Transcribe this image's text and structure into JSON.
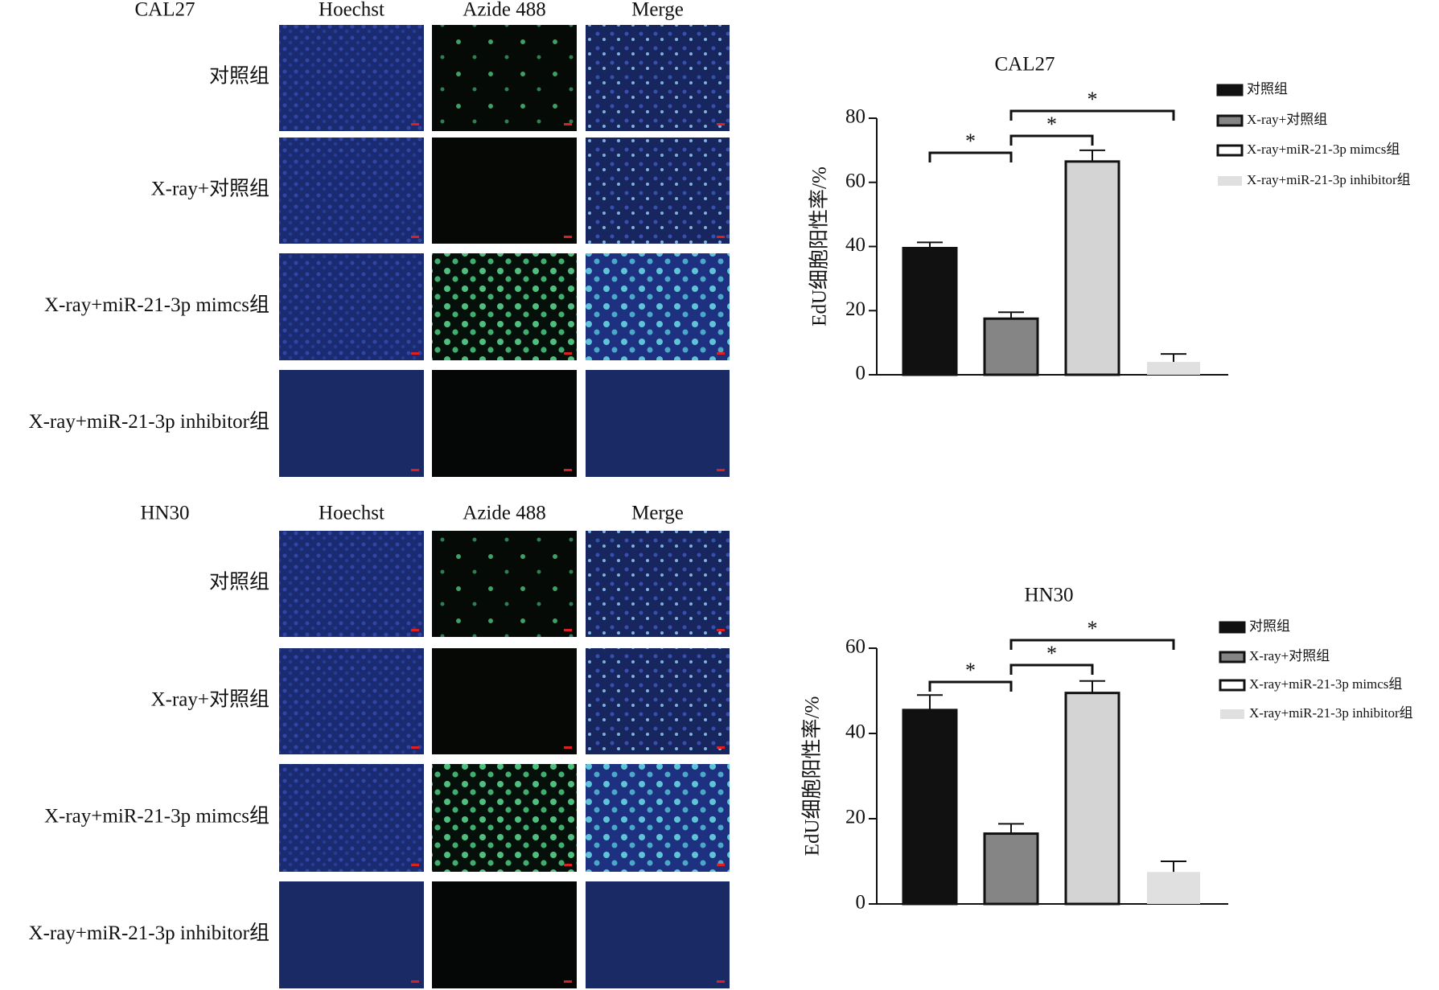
{
  "panels": [
    {
      "title": "CAL27",
      "columns": [
        "Hoechst",
        "Azide 488",
        "Merge"
      ],
      "rows": [
        "对照组",
        "X-ray+对照组",
        "X-ray+miR-21-3p mimcs组",
        "X-ray+miR-21-3p inhibitor组"
      ]
    },
    {
      "title": "HN30",
      "columns": [
        "Hoechst",
        "Azide 488",
        "Merge"
      ],
      "rows": [
        "对照组",
        "X-ray+对照组",
        "X-ray+miR-21-3p mimcs组",
        "X-ray+miR-21-3p inhibitor组"
      ]
    }
  ],
  "chart_data": [
    {
      "type": "bar",
      "title": "CAL27",
      "y_label": "EdU细胞阳性率/%",
      "categories": [
        "对照组",
        "X-ray+对照组",
        "X-ray+miR-21-3p mimcs组",
        "X-ray+miR-21-3p inhibitor组"
      ],
      "values": [
        39.5,
        17.5,
        66.5,
        4
      ],
      "errors": [
        1.8,
        2,
        3.5,
        2.5
      ],
      "colors": [
        "#111111",
        "#858585",
        "#d4d4d4",
        "#e0e0e0"
      ],
      "ylim": [
        0,
        80
      ],
      "yticks": [
        0,
        20,
        40,
        60,
        80
      ],
      "comparisons": [
        {
          "pair": [
            0,
            1
          ],
          "label": "*"
        },
        {
          "pair": [
            1,
            2
          ],
          "label": "*"
        },
        {
          "pair": [
            1,
            3
          ],
          "label": "*"
        }
      ]
    },
    {
      "type": "bar",
      "title": "HN30",
      "y_label": "EdU细胞阳性率/%",
      "categories": [
        "对照组",
        "X-ray+对照组",
        "X-ray+miR-21-3p mimcs组",
        "X-ray+miR-21-3p inhibitor组"
      ],
      "values": [
        45.5,
        16.5,
        49.5,
        7.5
      ],
      "errors": [
        3.5,
        2.3,
        2.8,
        2.5
      ],
      "colors": [
        "#111111",
        "#858585",
        "#d4d4d4",
        "#e0e0e0"
      ],
      "ylim": [
        0,
        60
      ],
      "yticks": [
        0,
        20,
        40,
        60
      ],
      "comparisons": [
        {
          "pair": [
            0,
            1
          ],
          "label": "*"
        },
        {
          "pair": [
            1,
            2
          ],
          "label": "*"
        },
        {
          "pair": [
            1,
            3
          ],
          "label": "*"
        }
      ]
    }
  ]
}
